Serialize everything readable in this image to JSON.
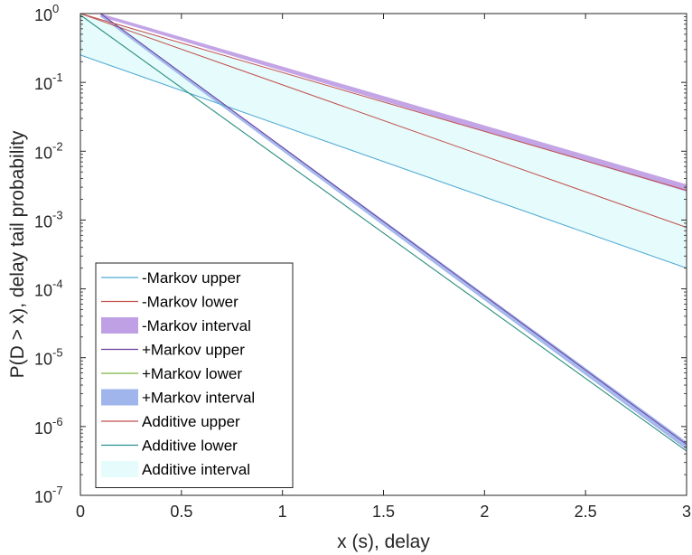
{
  "chart_data": {
    "type": "line",
    "title": "",
    "xlabel": "x (s), delay",
    "ylabel": "P(D > x), delay tail probability",
    "xlim": [
      0,
      3
    ],
    "ylim": [
      1e-07,
      1
    ],
    "yscale": "log",
    "grid": false,
    "legend_position": "bottom-left",
    "x_ticks": [
      0,
      0.5,
      1,
      1.5,
      2,
      2.5,
      3
    ],
    "x_tick_labels": [
      "0",
      "0.5",
      "1",
      "1.5",
      "2",
      "2.5",
      "3"
    ],
    "y_ticks": [
      1e-07,
      1e-06,
      1e-05,
      0.0001,
      0.001,
      0.01,
      0.1,
      1
    ],
    "y_tick_bases": [
      "10",
      "10",
      "10",
      "10",
      "10",
      "10",
      "10",
      "10"
    ],
    "y_tick_exponents": [
      "-7",
      "-6",
      "-5",
      "-4",
      "-3",
      "-2",
      "-1",
      "0"
    ],
    "series": [
      {
        "name": "-Markov upper",
        "kind": "line",
        "color": "#4fa9d2",
        "x": [
          0,
          3
        ],
        "y": [
          0.25,
          0.0002
        ]
      },
      {
        "name": "-Markov lower",
        "kind": "line",
        "color": "#c0504d",
        "x": [
          0,
          3
        ],
        "y": [
          1.0,
          0.00078
        ]
      },
      {
        "name": "-Markov interval",
        "kind": "band",
        "color": "#b48fe0",
        "x": [
          0.1,
          3
        ],
        "y_upper": [
          1.0,
          0.0033
        ],
        "y_lower": [
          0.9,
          0.0026
        ]
      },
      {
        "name": "+Markov upper",
        "kind": "line",
        "color": "#6a3d9a",
        "x": [
          0.1,
          3
        ],
        "y": [
          1.0,
          5.5e-07
        ]
      },
      {
        "name": "+Markov lower",
        "kind": "line",
        "color": "#7cb342",
        "x": [
          0,
          3
        ],
        "y": [
          0.95,
          4.4e-07
        ]
      },
      {
        "name": "+Markov interval",
        "kind": "band",
        "color": "#8fa8e8",
        "x": [
          0.1,
          3
        ],
        "y_upper": [
          1.0,
          6e-07
        ],
        "y_lower": [
          0.9,
          4.6e-07
        ]
      },
      {
        "name": "Additive upper",
        "kind": "line",
        "color": "#c0504d",
        "x": [
          0,
          3
        ],
        "y": [
          1.0,
          0.0027
        ]
      },
      {
        "name": "Additive lower",
        "kind": "line",
        "color": "#2a8f8f",
        "x": [
          0,
          3
        ],
        "y": [
          0.95,
          4.4e-07
        ]
      },
      {
        "name": "Additive interval",
        "kind": "band",
        "color": "#e6fbfb",
        "x": [
          0,
          3
        ],
        "y_upper": [
          1.0,
          0.0027
        ],
        "y_lower": [
          0.25,
          0.0002
        ]
      }
    ]
  },
  "colors": {
    "axis": "#262626",
    "legend_border": "#262626"
  }
}
